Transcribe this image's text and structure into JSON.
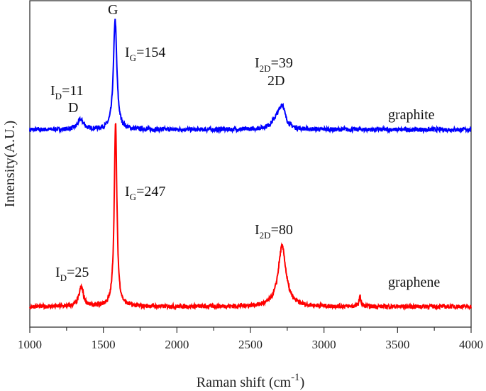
{
  "chart_data": {
    "type": "line",
    "title": "",
    "xlabel": "Raman shift (cm",
    "xlabel_sup": "-1",
    "xlabel_close": ")",
    "ylabel": "Intensity(A.U.)",
    "xlim": [
      1000,
      4000
    ],
    "ylim": [
      0,
      100
    ],
    "xticks": [
      1000,
      1500,
      2000,
      2500,
      3000,
      3500,
      4000
    ],
    "xtick_labels": [
      "1000",
      "1500",
      "2000",
      "2500",
      "3000",
      "3500",
      "4000"
    ],
    "grid": false,
    "series": [
      {
        "name": "graphite",
        "color": "#0000ff",
        "baseline": 60.5,
        "peaks": [
          {
            "x": 1345,
            "height": 3,
            "width": 25
          },
          {
            "x": 1580,
            "height": 33.5,
            "width": 14
          },
          {
            "x": 2690,
            "height": 4,
            "width": 45
          },
          {
            "x": 2718,
            "height": 5,
            "width": 20
          }
        ]
      },
      {
        "name": "graphene",
        "color": "#ff0000",
        "baseline": 6.3,
        "peaks": [
          {
            "x": 1350,
            "height": 6,
            "width": 18
          },
          {
            "x": 1583,
            "height": 56,
            "width": 11
          },
          {
            "x": 2715,
            "height": 18.5,
            "width": 32
          },
          {
            "x": 3245,
            "height": 3,
            "width": 8
          }
        ]
      }
    ],
    "annotations": [
      {
        "text": "G",
        "sub": ""
      },
      {
        "text": "I",
        "sub": "G",
        "value": "=154"
      },
      {
        "text": "I",
        "sub": "D",
        "value": "=11"
      },
      {
        "text": "D",
        "sub": ""
      },
      {
        "text": "I",
        "sub": "2D",
        "value": "=39"
      },
      {
        "text": "2D",
        "sub": ""
      },
      {
        "text": "graphite",
        "sub": ""
      },
      {
        "text": "I",
        "sub": "G",
        "value": "=247"
      },
      {
        "text": "I",
        "sub": "2D",
        "value": "=80"
      },
      {
        "text": "I",
        "sub": "D",
        "value": "=25"
      },
      {
        "text": "graphene",
        "sub": ""
      }
    ]
  }
}
